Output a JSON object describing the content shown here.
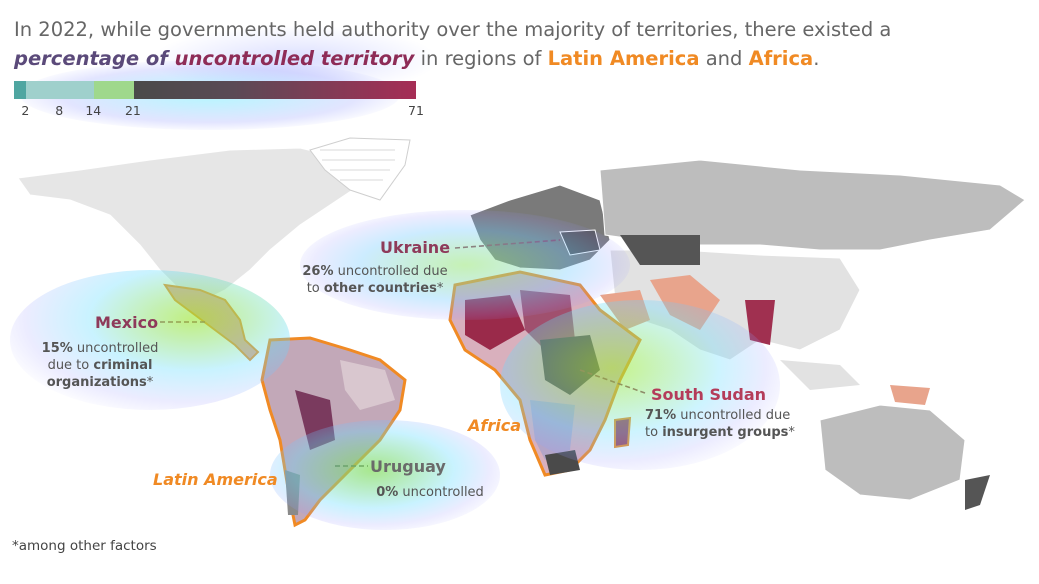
{
  "title": {
    "part1": "In 2022, while governments held authority over the majority of territories, there existed a",
    "emph_a": "percentage of ",
    "emph_b": "uncontrolled territory",
    "part2": " in regions of ",
    "latin_america": "Latin America",
    "and": " and ",
    "africa": "Africa",
    "end": "."
  },
  "legend": {
    "ticks": [
      "2",
      "8",
      "14",
      "21",
      "71"
    ],
    "tick_values": [
      2,
      8,
      14,
      21,
      71
    ],
    "min": 0,
    "max": 71,
    "colors": [
      "#4fa6a1",
      "#9fd0cc",
      "#a8d8a0",
      "#4a4a4a",
      "#a62d55"
    ]
  },
  "annotations": {
    "ukraine": {
      "name": "Ukraine",
      "pct": "26%",
      "text1": " uncontrolled due",
      "text2": "to ",
      "bold": "other countries",
      "star": "*"
    },
    "mexico": {
      "name": "Mexico",
      "pct": "15%",
      "text1": " uncontrolled",
      "text2": "due to ",
      "bold1": "criminal",
      "bold2": "organizations",
      "star": "*"
    },
    "south_sudan": {
      "name": "South Sudan",
      "pct": "71%",
      "text1": " uncontrolled due",
      "text2": "to ",
      "bold": "insurgent groups",
      "star": "*"
    },
    "uruguay": {
      "name": "Uruguay",
      "pct": "0%",
      "text1": " uncontrolled"
    }
  },
  "region_labels": {
    "africa": "Africa",
    "latin_america": "Latin America"
  },
  "footnote": "*among other factors",
  "colors": {
    "accent_orange": "#f08a24",
    "ukraine_name": "#8e3a5a",
    "mexico_name": "#8e3a5a",
    "south_sudan_name": "#b43c5a",
    "uruguay_name": "#6a6a6a"
  }
}
